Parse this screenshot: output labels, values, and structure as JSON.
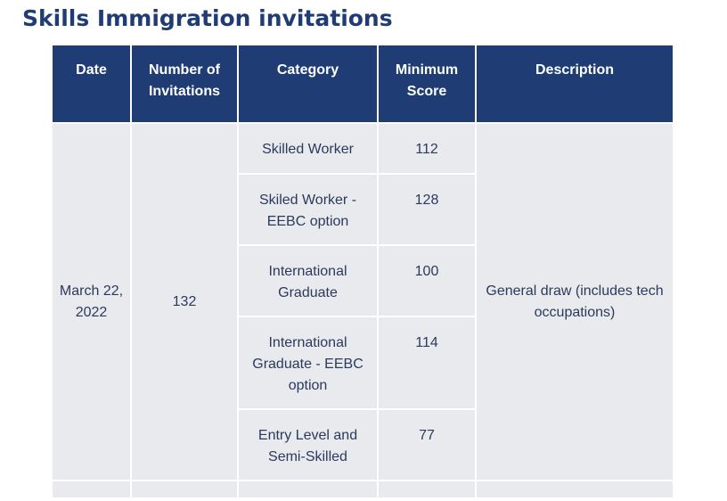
{
  "page": {
    "title": "Skills Immigration invitations"
  },
  "table": {
    "headers": {
      "date": "Date",
      "invitations": "Number of Invitations",
      "category": "Category",
      "min_score": "Minimum Score",
      "description": "Description"
    },
    "group": {
      "date": "March 22, 2022",
      "invitations": "132",
      "description": "General draw (includes tech occupations)"
    },
    "rows": [
      {
        "category": "Skilled Worker",
        "min_score": "112"
      },
      {
        "category": "Skiled Worker - EEBC option",
        "min_score": "128"
      },
      {
        "category": "International Graduate",
        "min_score": "100"
      },
      {
        "category": "International Graduate - EEBC option",
        "min_score": "114"
      },
      {
        "category": "Entry Level and Semi-Skilled",
        "min_score": "77"
      }
    ]
  }
}
